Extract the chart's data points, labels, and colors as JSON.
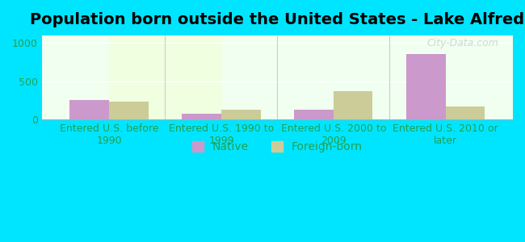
{
  "title": "Population born outside the United States - Lake Alfred",
  "categories": [
    "Entered U.S. before\n1990",
    "Entered U.S. 1990 to\n1999",
    "Entered U.S. 2000 to\n2009",
    "Entered U.S. 2010 or\nlater"
  ],
  "native_values": [
    250,
    70,
    120,
    860
  ],
  "foreign_values": [
    230,
    130,
    370,
    165
  ],
  "native_color": "#cc99cc",
  "foreign_color": "#cccc99",
  "background_outer": "#00e5ff",
  "background_chart_top": "#f0fff0",
  "background_chart_bottom": "#e8ffe0",
  "ylim": [
    0,
    1100
  ],
  "yticks": [
    0,
    500,
    1000
  ],
  "bar_width": 0.35,
  "title_fontsize": 14,
  "tick_label_fontsize": 9,
  "legend_fontsize": 10,
  "axis_label_color": "#20a050",
  "watermark": "City-Data.com"
}
